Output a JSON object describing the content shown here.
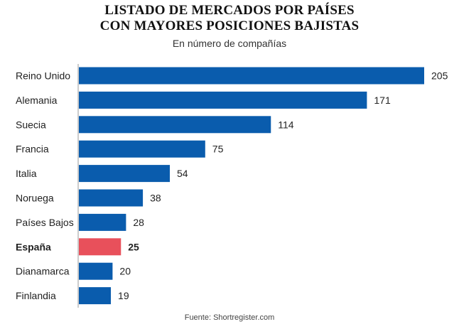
{
  "chart_data": {
    "type": "bar",
    "orientation": "horizontal",
    "title": [
      "LISTADO DE MERCADOS POR PAÍSES",
      "CON MAYORES POSICIONES BAJISTAS"
    ],
    "subtitle": "En número de compañías",
    "source": "Fuente: Shortregister.com",
    "categories": [
      "Reino Unido",
      "Alemania",
      "Suecia",
      "Francia",
      "Italia",
      "Noruega",
      "Países Bajos",
      "España",
      "Dianamarca",
      "Finlandia"
    ],
    "values": [
      205,
      171,
      114,
      75,
      54,
      38,
      28,
      25,
      20,
      19
    ],
    "highlight_category": "España",
    "xlim": [
      0,
      205
    ],
    "grid": false,
    "colors": {
      "bar": "#0a5cad",
      "highlight": "#e8505b",
      "axis": "#999999",
      "text": "#222222"
    }
  }
}
